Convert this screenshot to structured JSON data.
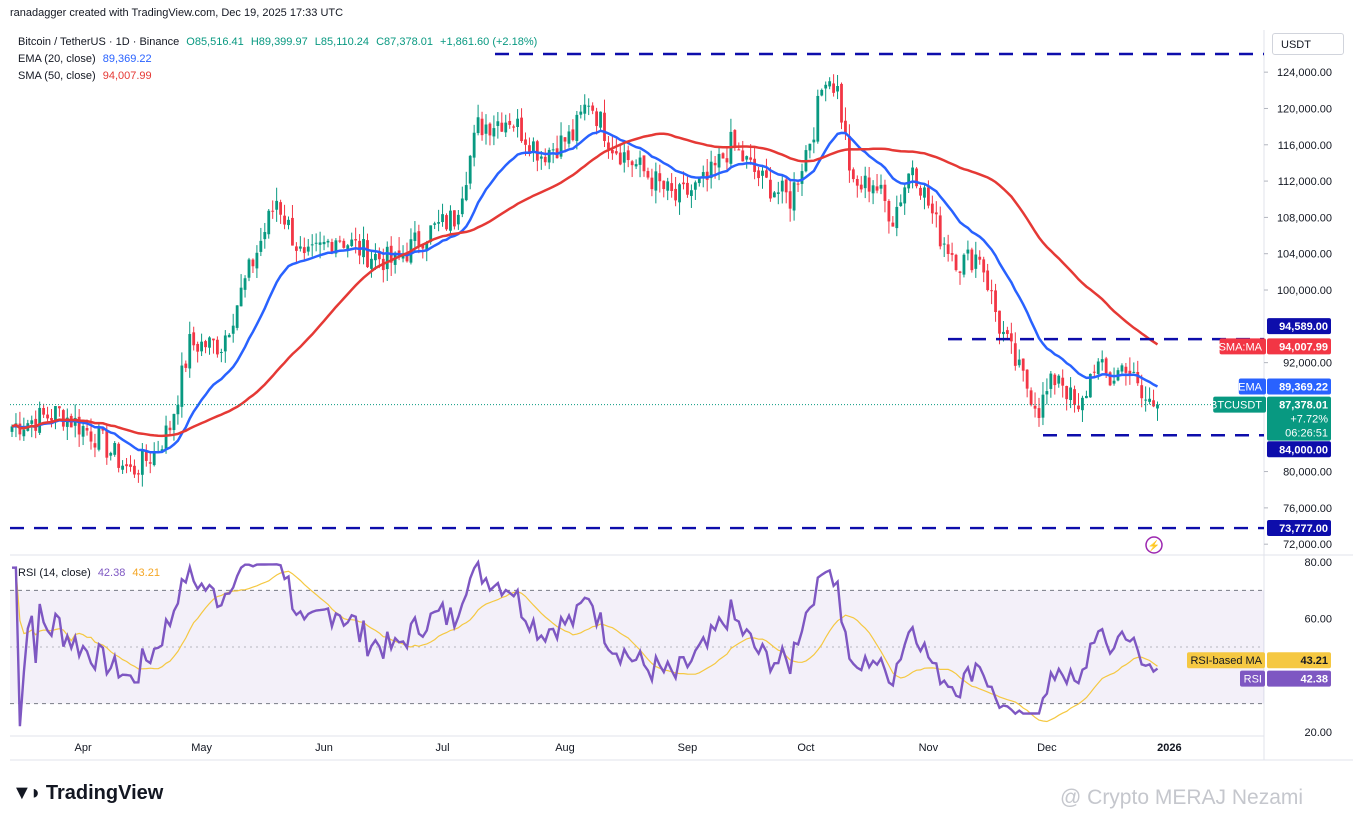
{
  "credit": "ranadagger created with TradingView.com, Dec 19, 2025 17:33 UTC",
  "symbol": {
    "title": "Bitcoin / TetherUS · 1D · Binance",
    "open": "O85,516.41",
    "high": "H89,399.97",
    "low": "L85,110.24",
    "close": "C87,378.01",
    "change": "+1,861.60 (+2.18%)"
  },
  "ema_legend": {
    "label": "EMA (20, close)",
    "value": "89,369.22"
  },
  "sma_legend": {
    "label": "SMA (50, close)",
    "value": "94,007.99"
  },
  "rsi_legend": {
    "label": "RSI (14, close)",
    "value": "42.38",
    "ma_value": "43.21"
  },
  "axis_unit": "USDT",
  "branding": {
    "logo": "TradingView",
    "watermark": "@ Crypto MERAJ Nezami"
  },
  "colors": {
    "up": "#089981",
    "down": "#f23645",
    "ema": "#2962ff",
    "sma": "#e53935",
    "rsi": "#7e57c2",
    "rsi_ma": "#f5c842",
    "level": "#0d0dab"
  },
  "chart_data": {
    "type": "candlestick",
    "title": "Bitcoin / TetherUS · 1D · Binance",
    "x_labels": [
      "Apr",
      "May",
      "Jun",
      "Jul",
      "Aug",
      "Sep",
      "Oct",
      "Nov",
      "Dec",
      "2026"
    ],
    "y_ticks": [
      124000,
      120000,
      116000,
      112000,
      108000,
      104000,
      100000,
      92000,
      80000,
      76000,
      72000
    ],
    "y_tick_labels": [
      "124,000.00",
      "120,000.00",
      "116,000.00",
      "112,000.00",
      "108,000.00",
      "104,000.00",
      "100,000.00",
      "92,000.00",
      "80,000.00",
      "76,000.00",
      "72,000.00"
    ],
    "ylim": [
      71500,
      126500
    ],
    "approx_closes_anchor_points": [
      [
        0,
        85000
      ],
      [
        12,
        86500
      ],
      [
        21,
        84000
      ],
      [
        30,
        80000
      ],
      [
        36,
        82000
      ],
      [
        40,
        85000
      ],
      [
        45,
        94000
      ],
      [
        53,
        94000
      ],
      [
        60,
        102000
      ],
      [
        67,
        110000
      ],
      [
        74,
        103000
      ],
      [
        82,
        106000
      ],
      [
        90,
        104000
      ],
      [
        97,
        103000
      ],
      [
        104,
        106000
      ],
      [
        112,
        108000
      ],
      [
        118,
        118000
      ],
      [
        126,
        119000
      ],
      [
        134,
        115000
      ],
      [
        142,
        117000
      ],
      [
        146,
        121000
      ],
      [
        152,
        116000
      ],
      [
        160,
        113000
      ],
      [
        168,
        110000
      ],
      [
        176,
        112000
      ],
      [
        182,
        116000
      ],
      [
        190,
        112000
      ],
      [
        197,
        110000
      ],
      [
        203,
        118000
      ],
      [
        206,
        124000
      ],
      [
        209,
        122000
      ],
      [
        213,
        111000
      ],
      [
        218,
        112000
      ],
      [
        223,
        108000
      ],
      [
        228,
        114000
      ],
      [
        235,
        106000
      ],
      [
        240,
        103000
      ],
      [
        245,
        104000
      ],
      [
        250,
        96000
      ],
      [
        255,
        91000
      ],
      [
        260,
        87000
      ],
      [
        265,
        91000
      ],
      [
        270,
        86000
      ],
      [
        274,
        92000
      ],
      [
        278,
        90000
      ],
      [
        282,
        92000
      ],
      [
        286,
        88000
      ],
      [
        290,
        87378
      ]
    ],
    "series": [
      {
        "name": "EMA (20, close)",
        "last": 89369.22
      },
      {
        "name": "SMA (50, close)",
        "last": 94007.99
      }
    ],
    "levels": [
      {
        "value": "126,000",
        "style": "dashed"
      },
      {
        "value": "94,589.00",
        "label": "94,589.00"
      },
      {
        "value": "84,000.00",
        "label": "84,000.00"
      },
      {
        "value": "73,777.00",
        "label": "73,777.00"
      }
    ],
    "price_tags": {
      "sma": {
        "name": "SMA:MA",
        "value": "94,007.99"
      },
      "ema": {
        "name": "EMA",
        "value": "89,369.22"
      },
      "last": {
        "name": "BTCUSDT",
        "value": "87,378.01",
        "change": "+7.72%",
        "countdown": "06:26:51"
      },
      "level_high": "94,589.00",
      "level_low": "84,000.00",
      "level_bottom": "73,777.00"
    },
    "rsi": {
      "y_ticks": [
        "80.00",
        "60.00",
        "20.00"
      ],
      "band_upper": 70,
      "band_lower": 30,
      "last": 42.38,
      "ma_last": 43.21,
      "tags": {
        "ma": "RSI-based MA",
        "ma_value": "43.21",
        "rsi": "RSI",
        "rsi_value": "42.38"
      }
    }
  }
}
